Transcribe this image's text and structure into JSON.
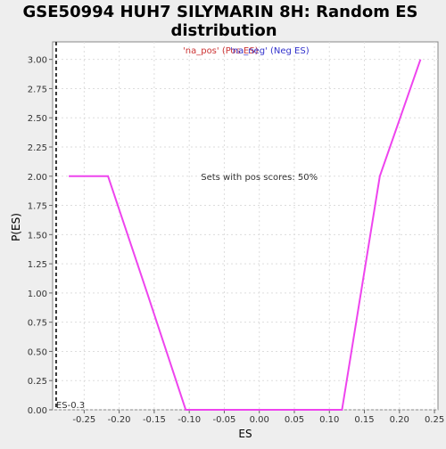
{
  "chart_data": {
    "type": "line",
    "title_line1": "GSE50994 HUH7 SILYMARIN 8H: Random ES",
    "title_line2": "distribution",
    "xlabel": "ES",
    "ylabel": "P(ES)",
    "xlim": [
      -0.295,
      0.255
    ],
    "ylim": [
      0,
      3.15
    ],
    "x_ticks": [
      -0.25,
      -0.2,
      -0.15,
      -0.1,
      -0.05,
      0.0,
      0.05,
      0.1,
      0.15,
      0.2,
      0.25
    ],
    "x_tick_labels": [
      "-0.25",
      "-0.20",
      "-0.15",
      "-0.10",
      "-0.05",
      "0.00",
      "0.05",
      "0.10",
      "0.15",
      "0.20",
      "0.25"
    ],
    "y_ticks": [
      0,
      0.25,
      0.5,
      0.75,
      1.0,
      1.25,
      1.5,
      1.75,
      2.0,
      2.25,
      2.5,
      2.75,
      3.0
    ],
    "y_tick_labels": [
      "0.00",
      "0.25",
      "0.50",
      "0.75",
      "1.00",
      "1.25",
      "1.50",
      "1.75",
      "2.00",
      "2.25",
      "2.50",
      "2.75",
      "3.00"
    ],
    "grid": true,
    "legend": [
      {
        "label": "'na_pos' (Pos ES)",
        "color": "#cc3333"
      },
      {
        "label": "'na_neg' (Neg ES)",
        "color": "#3333cc"
      }
    ],
    "series": [
      {
        "color": "#ee44ee",
        "x": [
          -0.272,
          -0.216,
          -0.16,
          -0.105,
          0.0,
          0.118,
          0.172,
          0.23
        ],
        "y": [
          2.0,
          2.0,
          1.0,
          0.0,
          0.0,
          0.0,
          2.0,
          3.0
        ]
      }
    ],
    "annotations": [
      {
        "text": "Sets with pos scores: 50%",
        "x": 0.0,
        "y": 2.0
      }
    ],
    "es_marker": {
      "x": -0.29,
      "label": "ES-0.3"
    }
  }
}
